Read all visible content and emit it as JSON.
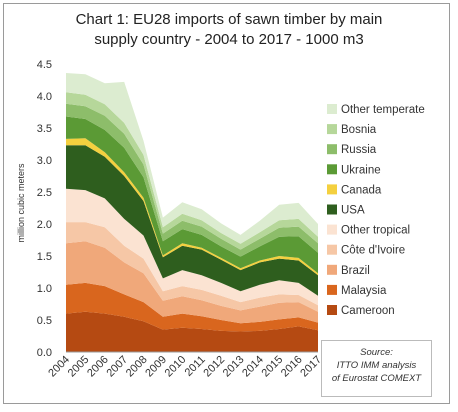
{
  "chart_data": {
    "type": "area",
    "stacked": true,
    "title_line1": "Chart 1: EU28 imports of sawn timber by main",
    "title_line2": "supply country - 2004 to 2017 - 1000 m3",
    "ylabel": "million cubic meters",
    "xlabel": "",
    "ylim": [
      0,
      4.5
    ],
    "yticks": [
      "0.0",
      "0.5",
      "1.0",
      "1.5",
      "2.0",
      "2.5",
      "3.0",
      "3.5",
      "4.0",
      "4.5"
    ],
    "x": [
      "2004",
      "2005",
      "2006",
      "2007",
      "2008",
      "2009",
      "2010",
      "2011",
      "2012",
      "2013",
      "2014",
      "2015",
      "2016",
      "2017"
    ],
    "series": [
      {
        "name": "Cameroon",
        "color": "#b54a12",
        "values": [
          0.6,
          0.63,
          0.6,
          0.55,
          0.48,
          0.35,
          0.38,
          0.36,
          0.33,
          0.32,
          0.33,
          0.36,
          0.4,
          0.34
        ]
      },
      {
        "name": "Malaysia",
        "color": "#d9661e",
        "values": [
          0.45,
          0.45,
          0.43,
          0.35,
          0.3,
          0.2,
          0.22,
          0.2,
          0.17,
          0.13,
          0.14,
          0.15,
          0.14,
          0.12
        ]
      },
      {
        "name": "Brazil",
        "color": "#f0a87a",
        "values": [
          0.65,
          0.65,
          0.6,
          0.5,
          0.45,
          0.25,
          0.27,
          0.25,
          0.22,
          0.2,
          0.24,
          0.26,
          0.24,
          0.17
        ]
      },
      {
        "name": "Côte d'Ivoire",
        "color": "#f6c7a6",
        "values": [
          0.33,
          0.3,
          0.32,
          0.26,
          0.23,
          0.15,
          0.16,
          0.16,
          0.16,
          0.13,
          0.14,
          0.13,
          0.11,
          0.1
        ]
      },
      {
        "name": "Other tropical",
        "color": "#fbe3d2",
        "values": [
          0.52,
          0.5,
          0.45,
          0.42,
          0.36,
          0.2,
          0.25,
          0.23,
          0.2,
          0.17,
          0.2,
          0.22,
          0.19,
          0.15
        ]
      },
      {
        "name": "USA",
        "color": "#2e5e1e",
        "values": [
          0.68,
          0.7,
          0.65,
          0.67,
          0.54,
          0.33,
          0.38,
          0.4,
          0.36,
          0.33,
          0.35,
          0.34,
          0.35,
          0.32
        ]
      },
      {
        "name": "Canada",
        "color": "#f4d03f",
        "values": [
          0.1,
          0.11,
          0.07,
          0.06,
          0.05,
          0.03,
          0.04,
          0.03,
          0.03,
          0.03,
          0.03,
          0.04,
          0.04,
          0.03
        ]
      },
      {
        "name": "Ukraine",
        "color": "#5b9a35",
        "values": [
          0.35,
          0.3,
          0.35,
          0.38,
          0.32,
          0.22,
          0.22,
          0.2,
          0.18,
          0.18,
          0.22,
          0.3,
          0.34,
          0.32
        ]
      },
      {
        "name": "Russia",
        "color": "#8dbd6a",
        "values": [
          0.2,
          0.2,
          0.22,
          0.22,
          0.2,
          0.12,
          0.13,
          0.13,
          0.12,
          0.11,
          0.12,
          0.14,
          0.15,
          0.15
        ]
      },
      {
        "name": "Bosnia",
        "color": "#b6d79a",
        "values": [
          0.18,
          0.18,
          0.18,
          0.17,
          0.15,
          0.1,
          0.11,
          0.1,
          0.09,
          0.09,
          0.1,
          0.12,
          0.12,
          0.1
        ]
      },
      {
        "name": "Other temperate",
        "color": "#dcecd0",
        "values": [
          0.3,
          0.32,
          0.33,
          0.64,
          0.22,
          0.15,
          0.18,
          0.17,
          0.15,
          0.14,
          0.18,
          0.24,
          0.25,
          0.2
        ]
      }
    ],
    "legend_position": "right",
    "grid": false
  },
  "source": {
    "line1": "Source:",
    "line2": "ITTO IMM analysis",
    "line3": "of Eurostat COMEXT"
  }
}
